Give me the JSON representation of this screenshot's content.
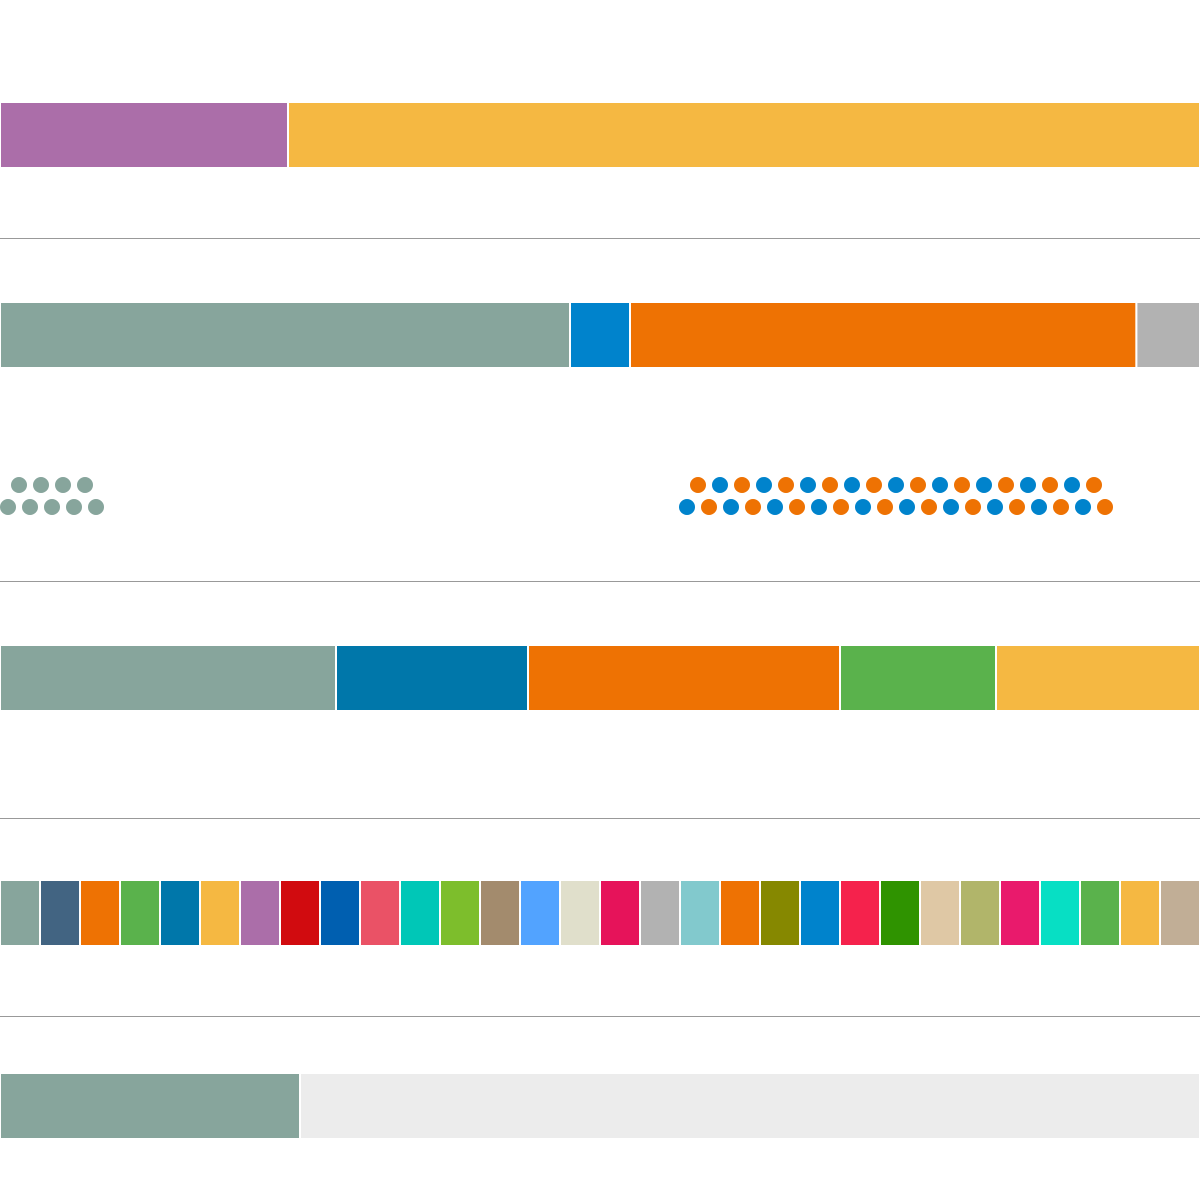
{
  "colors": {
    "background": "#ffffff",
    "divider": "#999999",
    "segment_gap": "#ffffff"
  },
  "chart_data": [
    {
      "type": "bar",
      "orientation": "horizontal-stacked",
      "xlim": [
        0,
        100
      ],
      "segments": [
        {
          "value": 24,
          "color": "#ab6ea9"
        },
        {
          "value": 76,
          "color": "#f5b842"
        }
      ]
    },
    {
      "type": "bar",
      "orientation": "horizontal-stacked",
      "xlim": [
        0,
        100
      ],
      "segments": [
        {
          "value": 47.5,
          "color": "#87a59c"
        },
        {
          "value": 5,
          "color": "#0083cc"
        },
        {
          "value": 42.2,
          "color": "#ee7203"
        },
        {
          "value": 5.3,
          "color": "#b2b2b2"
        }
      ],
      "dot_groups": [
        {
          "color_sequence": [
            "#87a59c"
          ],
          "rows": [
            4,
            5
          ],
          "align": "left"
        },
        {
          "color_sequence": [
            "#ee7203",
            "#0083cc"
          ],
          "rows": [
            19,
            20
          ],
          "align": "center"
        }
      ]
    },
    {
      "type": "bar",
      "orientation": "horizontal-stacked",
      "xlim": [
        0,
        100
      ],
      "segments": [
        {
          "value": 28,
          "color": "#87a59c"
        },
        {
          "value": 16,
          "color": "#0077aa"
        },
        {
          "value": 26,
          "color": "#ee7203"
        },
        {
          "value": 13,
          "color": "#5ab24c"
        },
        {
          "value": 17,
          "color": "#f5b842"
        }
      ]
    },
    {
      "type": "bar",
      "orientation": "horizontal-stacked",
      "xlim": [
        0,
        30
      ],
      "segments": [
        {
          "value": 1,
          "color": "#87a59c"
        },
        {
          "value": 1,
          "color": "#426482"
        },
        {
          "value": 1,
          "color": "#ee7203"
        },
        {
          "value": 1,
          "color": "#5ab24c"
        },
        {
          "value": 1,
          "color": "#0077aa"
        },
        {
          "value": 1,
          "color": "#f5b842"
        },
        {
          "value": 1,
          "color": "#ab6ea9"
        },
        {
          "value": 1,
          "color": "#d10b0f"
        },
        {
          "value": 1,
          "color": "#005fb0"
        },
        {
          "value": 1,
          "color": "#ea5266"
        },
        {
          "value": 1,
          "color": "#00c7b7"
        },
        {
          "value": 1,
          "color": "#7dbe2c"
        },
        {
          "value": 1,
          "color": "#a38b6d"
        },
        {
          "value": 1,
          "color": "#52a3ff"
        },
        {
          "value": 1,
          "color": "#e0dfcb"
        },
        {
          "value": 1,
          "color": "#e6135a"
        },
        {
          "value": 1,
          "color": "#b2b2b2"
        },
        {
          "value": 1,
          "color": "#82c9cd"
        },
        {
          "value": 1,
          "color": "#ee7203"
        },
        {
          "value": 1,
          "color": "#868800"
        },
        {
          "value": 1,
          "color": "#0083cc"
        },
        {
          "value": 1,
          "color": "#f5224c"
        },
        {
          "value": 1,
          "color": "#2f9300"
        },
        {
          "value": 1,
          "color": "#dfc8a5"
        },
        {
          "value": 1,
          "color": "#b1b56a"
        },
        {
          "value": 1,
          "color": "#e91a6c"
        },
        {
          "value": 1,
          "color": "#07dfc4"
        },
        {
          "value": 1,
          "color": "#5ab24c"
        },
        {
          "value": 1,
          "color": "#f5b842"
        },
        {
          "value": 1,
          "color": "#c1ae96"
        }
      ]
    },
    {
      "type": "bar",
      "orientation": "horizontal-stacked",
      "xlim": [
        0,
        100
      ],
      "segments": [
        {
          "value": 25,
          "color": "#87a59c"
        },
        {
          "value": 75,
          "color": "#ececec"
        }
      ]
    }
  ]
}
